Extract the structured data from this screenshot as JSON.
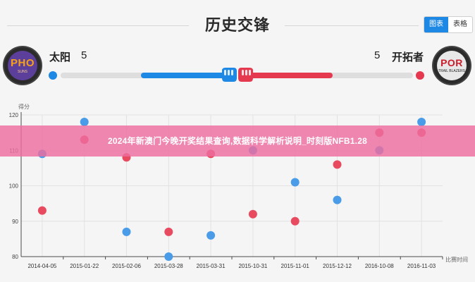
{
  "header": {
    "title": "历史交锋",
    "view_options": [
      "图表",
      "表格"
    ],
    "active_view": "图表"
  },
  "home_team": {
    "name": "太阳",
    "score": "5",
    "logo_abbr": "PHO",
    "logo_sub": "SUNS",
    "color": "#1e88e5"
  },
  "away_team": {
    "name": "开拓者",
    "score": "5",
    "logo_abbr": "POR",
    "logo_sub": "TRAIL BLAZERS",
    "color": "#e53950"
  },
  "overlay": {
    "text": "2024年新澳门今晚开奖结果查询,数据科学解析说明_时刻版NFB1.28"
  },
  "chart_data": {
    "type": "scatter",
    "ylabel": "得分",
    "xlabel": "比赛时间",
    "categories": [
      "2014-04-05",
      "2015-01-22",
      "2015-02-06",
      "2015-03-28",
      "2015-03-31",
      "2015-10-31",
      "2015-11-01",
      "2015-12-12",
      "2016-10-08",
      "2016-11-03"
    ],
    "ylim": [
      80,
      120
    ],
    "yticks": [
      80,
      90,
      100,
      110,
      120
    ],
    "grid": true,
    "series": [
      {
        "color": "#4a9ce8",
        "values": [
          109,
          118,
          87,
          80,
          86,
          110,
          101,
          96,
          110,
          118
        ]
      },
      {
        "color": "#e84a5f",
        "values": [
          93,
          113,
          108,
          87,
          109,
          92,
          90,
          106,
          115,
          115
        ]
      }
    ]
  }
}
